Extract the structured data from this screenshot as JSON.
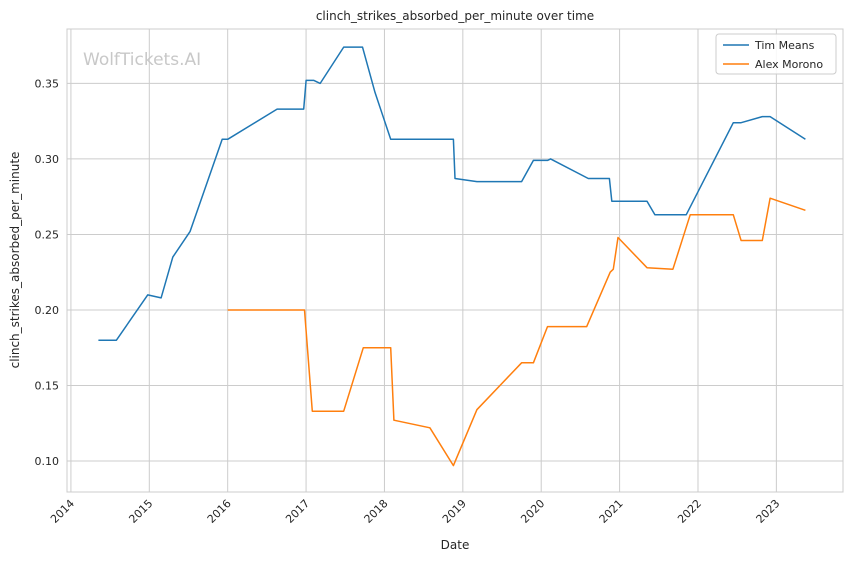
{
  "chart_data": {
    "type": "line",
    "title": "clinch_strikes_absorbed_per_minute over time",
    "xlabel": "Date",
    "ylabel": "clinch_strikes_absorbed_per_minute",
    "watermark": "WolfTickets.AI",
    "xlim": [
      2013.95,
      2023.85
    ],
    "ylim": [
      0.0795,
      0.386
    ],
    "x_ticks": [
      2014,
      2015,
      2016,
      2017,
      2018,
      2019,
      2020,
      2021,
      2022,
      2023
    ],
    "y_ticks": [
      0.1,
      0.15,
      0.2,
      0.25,
      0.3,
      0.35
    ],
    "y_tick_labels": [
      "0.10",
      "0.15",
      "0.20",
      "0.25",
      "0.30",
      "0.35"
    ],
    "grid": true,
    "legend_position": "top-right",
    "series": [
      {
        "name": "Tim Means",
        "color": "#1f77b4",
        "x": [
          2014.35,
          2014.58,
          2014.98,
          2015.15,
          2015.3,
          2015.52,
          2015.93,
          2016.0,
          2016.63,
          2016.97,
          2017.0,
          2017.1,
          2017.18,
          2017.48,
          2017.72,
          2017.88,
          2018.08,
          2018.3,
          2018.88,
          2018.9,
          2019.18,
          2019.75,
          2019.9,
          2020.08,
          2020.12,
          2020.6,
          2020.87,
          2020.9,
          2021.35,
          2021.45,
          2021.85,
          2022.45,
          2022.55,
          2022.82,
          2022.92,
          2023.37
        ],
        "y": [
          0.18,
          0.18,
          0.21,
          0.208,
          0.235,
          0.252,
          0.313,
          0.313,
          0.333,
          0.333,
          0.352,
          0.352,
          0.35,
          0.374,
          0.374,
          0.344,
          0.313,
          0.313,
          0.313,
          0.287,
          0.285,
          0.285,
          0.299,
          0.299,
          0.3,
          0.287,
          0.287,
          0.272,
          0.272,
          0.263,
          0.263,
          0.324,
          0.324,
          0.328,
          0.328,
          0.313
        ]
      },
      {
        "name": "Alex Morono",
        "color": "#ff7f0e",
        "x": [
          2016.0,
          2016.98,
          2017.08,
          2017.48,
          2017.73,
          2018.08,
          2018.12,
          2018.58,
          2018.88,
          2019.18,
          2019.75,
          2019.9,
          2020.08,
          2020.58,
          2020.88,
          2020.92,
          2020.98,
          2021.35,
          2021.68,
          2021.9,
          2022.45,
          2022.55,
          2022.82,
          2022.92,
          2023.37
        ],
        "y": [
          0.2,
          0.2,
          0.133,
          0.133,
          0.175,
          0.175,
          0.127,
          0.122,
          0.097,
          0.134,
          0.165,
          0.165,
          0.189,
          0.189,
          0.225,
          0.227,
          0.248,
          0.228,
          0.227,
          0.263,
          0.263,
          0.246,
          0.246,
          0.274,
          0.266
        ]
      }
    ]
  }
}
